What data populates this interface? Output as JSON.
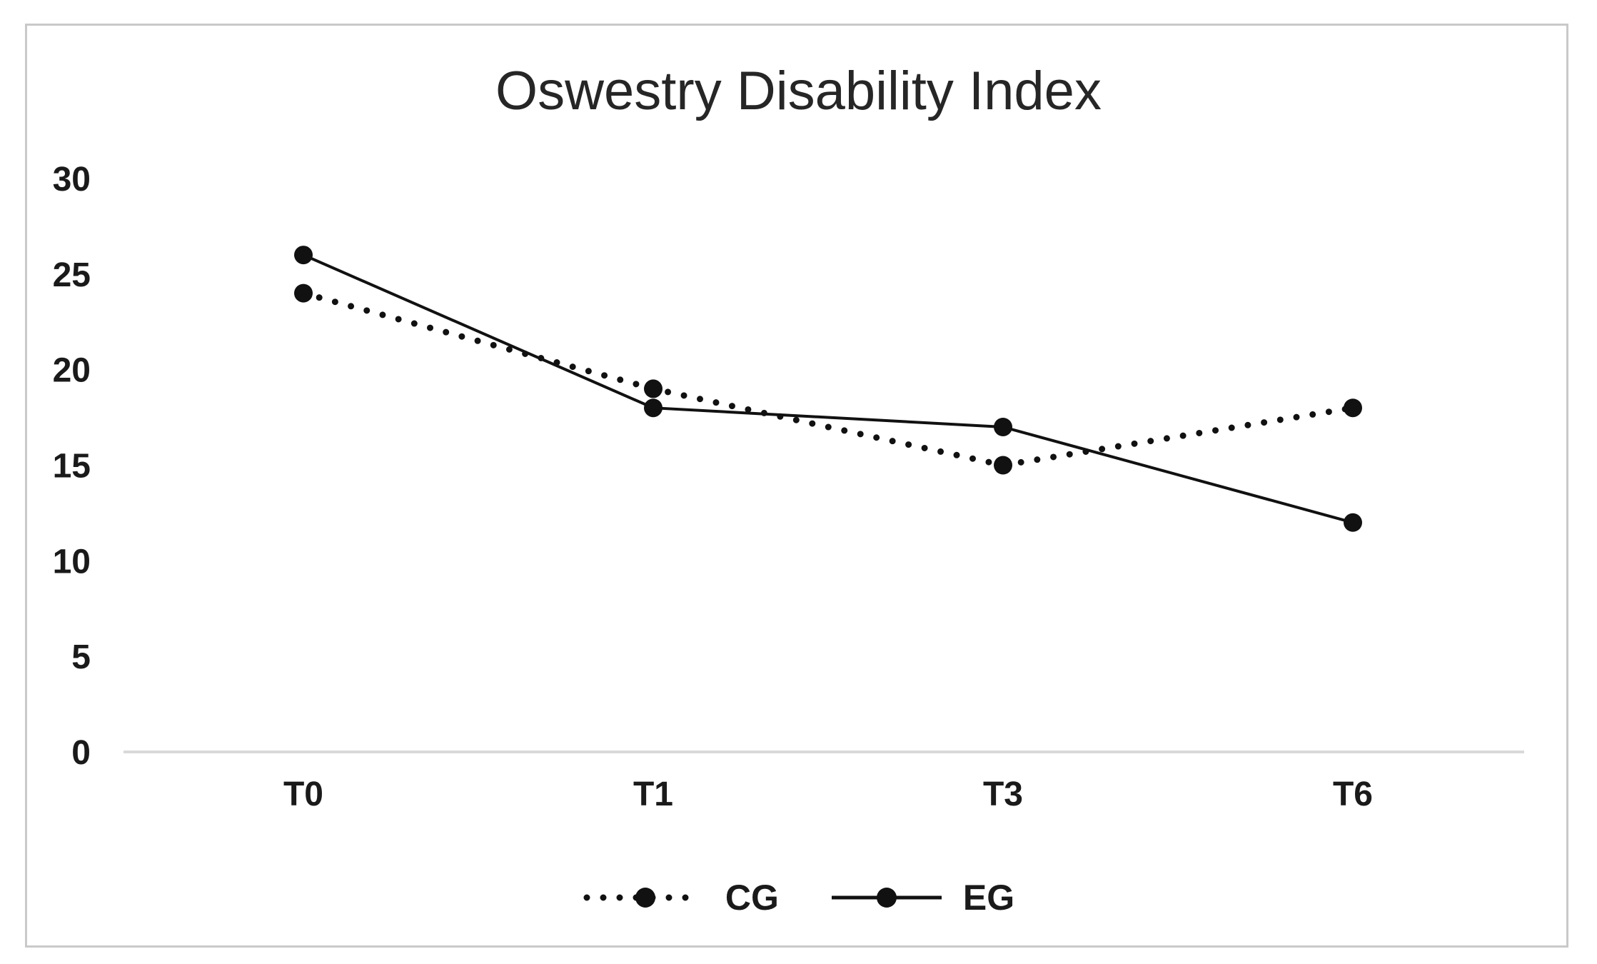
{
  "chart_data": {
    "type": "line",
    "title": "Oswestry Disability Index",
    "categories": [
      "T0",
      "T1",
      "T3",
      "T6"
    ],
    "series": [
      {
        "name": "CG",
        "style": "dotted",
        "marker": "circle",
        "values": [
          24,
          19,
          15,
          18
        ]
      },
      {
        "name": "EG",
        "style": "solid",
        "marker": "circle",
        "values": [
          26,
          18,
          17,
          12
        ]
      }
    ],
    "xlabel": "",
    "ylabel": "",
    "ylim": [
      0,
      30
    ],
    "yticks": [
      0,
      5,
      10,
      15,
      20,
      25,
      30
    ],
    "grid": false,
    "legend_position": "bottom",
    "colors": {
      "series": "#111111",
      "axis_line": "#d9d9d9",
      "text": "#1a1a1a",
      "frame_border": "#c9c9c9",
      "background": "#ffffff"
    }
  }
}
